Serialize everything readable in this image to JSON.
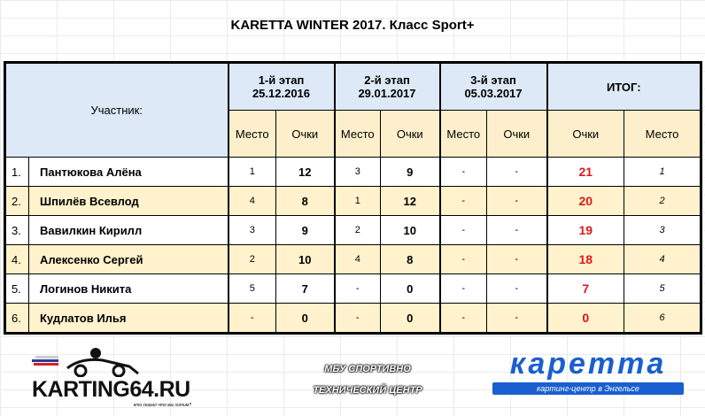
{
  "title": "KARETTA WINTER 2017. Класс Sport+",
  "header": {
    "participant": "Участник:",
    "stages": [
      {
        "name": "1-й этап",
        "date": "25.12.2016"
      },
      {
        "name": "2-й этап",
        "date": "29.01.2017"
      },
      {
        "name": "3-й этап",
        "date": "05.03.2017"
      }
    ],
    "total": "ИТОГ:",
    "place": "Место",
    "points": "Очки"
  },
  "rows": [
    {
      "n": "1.",
      "name": "Пантюкова Алёна",
      "s1p": "1",
      "s1o": "12",
      "s2p": "3",
      "s2o": "9",
      "s3p": "-",
      "s3o": "-",
      "total": "21",
      "place": "1"
    },
    {
      "n": "2.",
      "name": "Шпилёв Всевлод",
      "s1p": "4",
      "s1o": "8",
      "s2p": "1",
      "s2o": "12",
      "s3p": "-",
      "s3o": "-",
      "total": "20",
      "place": "2"
    },
    {
      "n": "3.",
      "name": "Вавилкин Кирилл",
      "s1p": "3",
      "s1o": "9",
      "s2p": "2",
      "s2o": "10",
      "s3p": "-",
      "s3o": "-",
      "total": "19",
      "place": "3"
    },
    {
      "n": "4.",
      "name": "Алексенко Сергей",
      "s1p": "2",
      "s1o": "10",
      "s2p": "4",
      "s2o": "8",
      "s3p": "-",
      "s3o": "-",
      "total": "18",
      "place": "4"
    },
    {
      "n": "5.",
      "name": "Логинов Никита",
      "s1p": "5",
      "s1o": "7",
      "s2p": "-",
      "s2o": "0",
      "s3p": "-",
      "s3o": "-",
      "total": "7",
      "place": "5"
    },
    {
      "n": "6.",
      "name": "Кудлатов Илья",
      "s1p": "-",
      "s1o": "0",
      "s2p": "-",
      "s2o": "0",
      "s3p": "-",
      "s3o": "-",
      "total": "0",
      "place": "6"
    }
  ],
  "logos": {
    "karting64": "KARTING64.RU",
    "karting64_slogan": "кто сказал что мы хотим?",
    "mbu_line1": "МБУ СПОРТИВНО",
    "mbu_line2": "ТЕХНИЧЕСКИЙ ЦЕНТР",
    "karetta": "каретта",
    "karetta_sub": "картинг-центр в Энгельсе"
  },
  "colors": {
    "header_blue": "#dde9f6",
    "row_alt": "#fff2cc",
    "total_red": "#e0161b",
    "karetta_blue": "#1a5fd0"
  }
}
